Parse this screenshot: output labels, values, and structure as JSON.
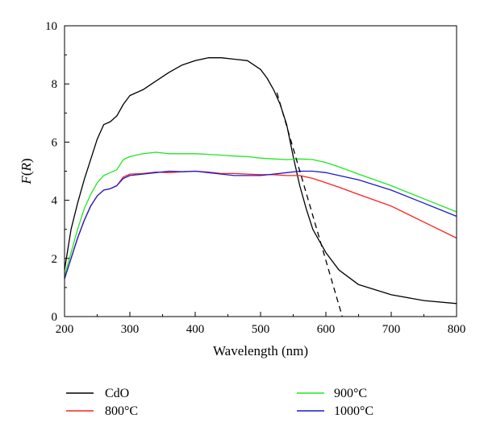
{
  "chart_data": {
    "type": "line",
    "title": "",
    "xlabel": "Wavelength (nm)",
    "ylabel_main": "F",
    "ylabel_paren_open": "(",
    "ylabel_var": "R",
    "ylabel_paren_close": ")",
    "xlim": [
      200,
      800
    ],
    "ylim": [
      0,
      10
    ],
    "xticks": [
      200,
      300,
      400,
      500,
      600,
      700,
      800
    ],
    "yticks": [
      0,
      2,
      4,
      6,
      8,
      10
    ],
    "grid": false,
    "legend_position": "bottom",
    "series": [
      {
        "name": "CdO",
        "color": "#000000",
        "dashed": false,
        "x": [
          200,
          205,
          210,
          220,
          230,
          240,
          250,
          260,
          270,
          280,
          290,
          300,
          320,
          340,
          360,
          380,
          400,
          420,
          440,
          460,
          480,
          500,
          510,
          520,
          530,
          540,
          550,
          560,
          570,
          580,
          600,
          620,
          650,
          700,
          750,
          800
        ],
        "y": [
          1.6,
          2.3,
          3.0,
          3.9,
          4.7,
          5.4,
          6.1,
          6.6,
          6.7,
          6.9,
          7.3,
          7.6,
          7.8,
          8.1,
          8.4,
          8.65,
          8.8,
          8.9,
          8.9,
          8.85,
          8.8,
          8.5,
          8.2,
          7.8,
          7.3,
          6.6,
          5.5,
          4.5,
          3.7,
          3.0,
          2.2,
          1.6,
          1.1,
          0.75,
          0.55,
          0.45
        ]
      },
      {
        "name": "800°C",
        "color": "#ff1f1f",
        "dashed": false,
        "x": [
          200,
          210,
          220,
          230,
          240,
          250,
          260,
          270,
          280,
          290,
          300,
          320,
          340,
          360,
          380,
          400,
          420,
          440,
          460,
          480,
          500,
          520,
          540,
          560,
          580,
          600,
          620,
          650,
          700,
          750,
          800
        ],
        "y": [
          1.3,
          2.0,
          2.7,
          3.3,
          3.8,
          4.15,
          4.35,
          4.4,
          4.5,
          4.8,
          4.9,
          4.92,
          4.97,
          4.95,
          4.98,
          5.0,
          4.97,
          4.92,
          4.92,
          4.9,
          4.88,
          4.88,
          4.85,
          4.85,
          4.75,
          4.6,
          4.45,
          4.2,
          3.8,
          3.25,
          2.7
        ]
      },
      {
        "name": "900°C",
        "color": "#22e622",
        "dashed": false,
        "x": [
          200,
          210,
          220,
          230,
          240,
          250,
          260,
          270,
          280,
          290,
          300,
          320,
          340,
          360,
          380,
          400,
          420,
          440,
          460,
          480,
          500,
          520,
          540,
          560,
          580,
          600,
          620,
          650,
          700,
          750,
          800
        ],
        "y": [
          1.4,
          2.2,
          3.0,
          3.7,
          4.2,
          4.6,
          4.85,
          4.95,
          5.05,
          5.4,
          5.5,
          5.6,
          5.65,
          5.6,
          5.6,
          5.6,
          5.58,
          5.55,
          5.52,
          5.5,
          5.45,
          5.42,
          5.4,
          5.42,
          5.4,
          5.3,
          5.15,
          4.9,
          4.5,
          4.05,
          3.6
        ]
      },
      {
        "name": "1000°C",
        "color": "#1a1acc",
        "dashed": false,
        "x": [
          200,
          210,
          220,
          230,
          240,
          250,
          260,
          270,
          280,
          290,
          300,
          320,
          340,
          360,
          380,
          400,
          420,
          440,
          460,
          480,
          500,
          520,
          540,
          560,
          580,
          600,
          620,
          650,
          700,
          750,
          800
        ],
        "y": [
          1.3,
          2.0,
          2.7,
          3.3,
          3.8,
          4.15,
          4.35,
          4.4,
          4.5,
          4.75,
          4.85,
          4.9,
          4.95,
          5.0,
          4.98,
          5.0,
          4.95,
          4.9,
          4.85,
          4.85,
          4.85,
          4.9,
          4.95,
          5.0,
          5.0,
          4.95,
          4.85,
          4.7,
          4.35,
          3.9,
          3.45
        ]
      },
      {
        "name": "",
        "color": "#000000",
        "dashed": true,
        "x": [
          525,
          625
        ],
        "y": [
          7.7,
          0.0
        ]
      }
    ]
  }
}
